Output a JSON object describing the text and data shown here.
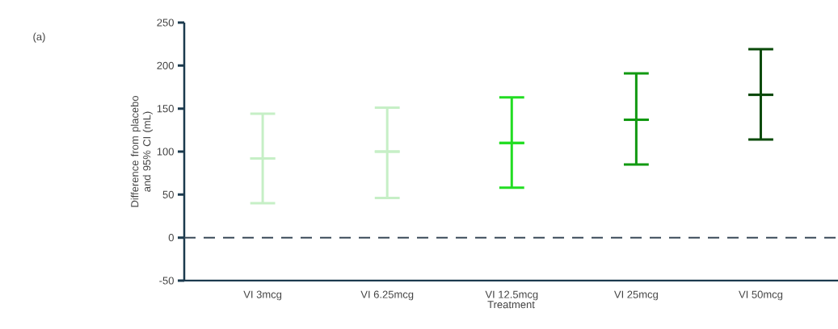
{
  "chart_data": {
    "type": "box",
    "categories": [
      "VI 3mcg",
      "VI 6.25mcg",
      "VI 12.5mcg",
      "VI 25mcg",
      "VI 50mcg"
    ],
    "boxes": [
      {
        "low": 40,
        "q1": 92,
        "median": 92,
        "q3": 92,
        "high": 144
      },
      {
        "low": 46,
        "q1": 100,
        "median": 100,
        "q3": 100,
        "high": 151
      },
      {
        "low": 58,
        "q1": 110,
        "median": 110,
        "q3": 110,
        "high": 163
      },
      {
        "low": 85,
        "q1": 137,
        "median": 137,
        "q3": 137,
        "high": 191
      },
      {
        "low": 114,
        "q1": 166,
        "median": 166,
        "q3": 166,
        "high": 219
      }
    ],
    "colors": [
      "#c6efc6",
      "#c6efc6",
      "#22dd22",
      "#119911",
      "#0a4a0a"
    ],
    "xlabel": "Treatment",
    "ylabel": "Difference from placebo and 95% CI (mL)",
    "ylim": [
      -50,
      250
    ],
    "yticks": [
      -50,
      0,
      50,
      100,
      150,
      200,
      250
    ],
    "ref_lines": [
      {
        "axis": "y",
        "value": 0,
        "color": "#3a4a58",
        "line_style": "dashed"
      }
    ],
    "annotations": [
      "(a)"
    ]
  }
}
